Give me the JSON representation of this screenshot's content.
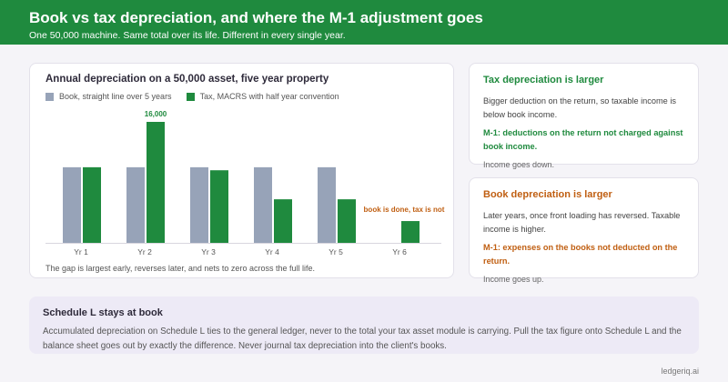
{
  "header": {
    "title": "Book vs tax depreciation, and where the M-1 adjustment goes",
    "subtitle": "One 50,000 machine. Same total over its life. Different in every single year."
  },
  "chart_card": {
    "note": "The gap is largest early, reverses later, and nets to zero across the full life."
  },
  "chart_data": {
    "type": "bar",
    "title": "Annual depreciation on a 50,000 asset, five year property",
    "categories": [
      "Yr 1",
      "Yr 2",
      "Yr 3",
      "Yr 4",
      "Yr 5",
      "Yr 6"
    ],
    "series": [
      {
        "name": "Book, straight line over 5 years",
        "values": [
          10000,
          10000,
          10000,
          10000,
          10000,
          0
        ],
        "color": "#97a3b8"
      },
      {
        "name": "Tax, MACRS with half year convention",
        "values": [
          10000,
          16000,
          9600,
          5760,
          5760,
          2880
        ],
        "color": "#1f8a3e"
      }
    ],
    "ylim": [
      0,
      16000
    ],
    "grid": false,
    "legend": "top-left",
    "annotations": [
      {
        "text": "16,000",
        "category": "Yr 2",
        "color": "#1f8a3e"
      },
      {
        "text": "book is done, tax is not",
        "category": "Yr 6",
        "color": "#c05f12"
      }
    ]
  },
  "tax_card": {
    "title": "Tax depreciation is larger",
    "body": "Bigger deduction on the return, so taxable income is below book income.",
    "m1": "M-1: deductions on the return not charged against book income.",
    "effect": "Income goes down."
  },
  "book_card": {
    "title": "Book depreciation is larger",
    "body": "Later years, once front loading has reversed. Taxable income is higher.",
    "m1": "M-1: expenses on the books not deducted on the return.",
    "effect": "Income goes up."
  },
  "schedule": {
    "title": "Schedule L stays at book",
    "body": "Accumulated depreciation on Schedule L ties to the general ledger, never to the total your tax asset module is carrying. Pull the tax figure onto Schedule L and the balance sheet goes out by exactly the difference. Never journal tax depreciation into the client's books."
  },
  "footer": {
    "brand": "ledgeriq.ai"
  },
  "colors": {
    "accent": "#1f8a3e",
    "warning": "#c05f12",
    "book": "#97a3b8"
  }
}
